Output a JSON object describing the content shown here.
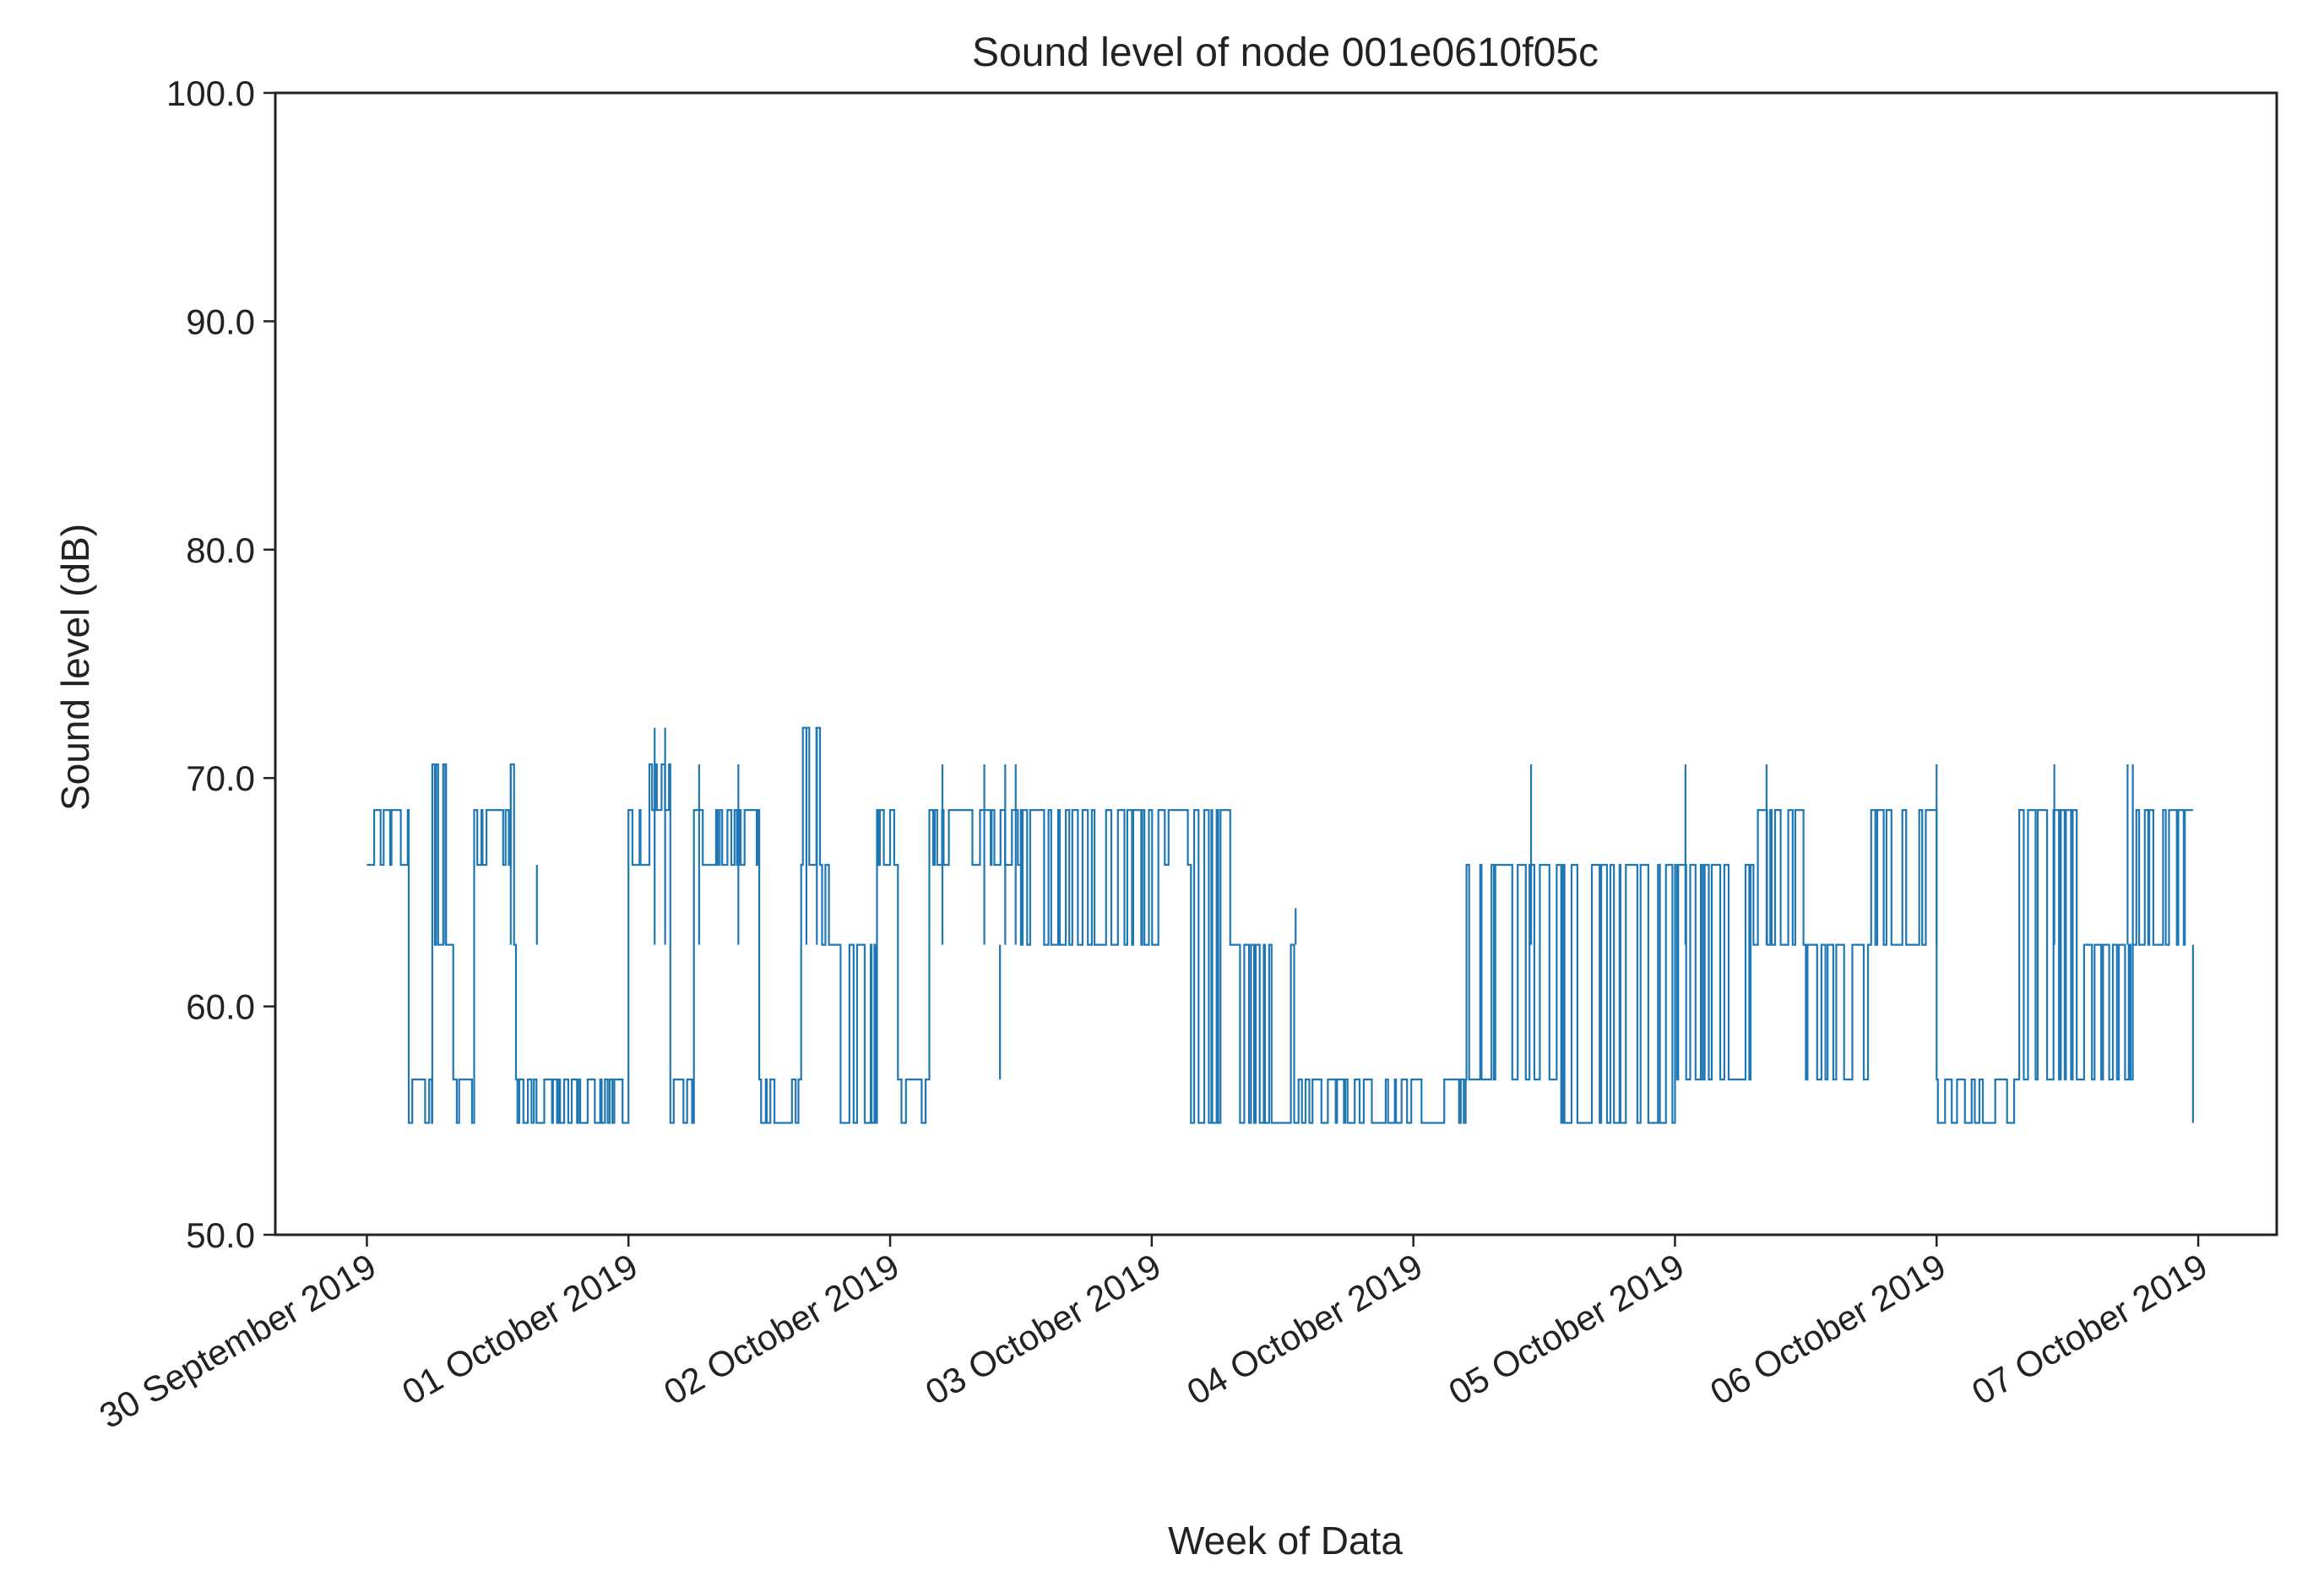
{
  "chart_data": {
    "type": "line",
    "title": "Sound level of node 001e0610f05c",
    "xlabel": "Week of Data",
    "ylabel": "Sound level (dB)",
    "ylim": [
      50,
      100
    ],
    "xlim": [
      -0.35,
      7.3
    ],
    "yticks": [
      50,
      60,
      70,
      80,
      90,
      100
    ],
    "ytick_labels": [
      "50.0",
      "60.0",
      "70.0",
      "80.0",
      "90.0",
      "100.0"
    ],
    "xticks": [
      0,
      1,
      2,
      3,
      4,
      5,
      6,
      7
    ],
    "xtick_labels": [
      "30 September 2019",
      "01 October 2019",
      "02 October 2019",
      "03 October 2019",
      "04 October 2019",
      "05 October 2019",
      "06 October 2019",
      "07 October 2019"
    ],
    "x_units": "days since 30 September 2019",
    "grid": false,
    "series": [
      {
        "name": "Sound level",
        "color": "#1f77b4",
        "segments": [
          {
            "x": [
              0.0,
              0.16
            ],
            "levels": [
              66.2,
              68.6
            ]
          },
          {
            "x": [
              0.16,
              0.25
            ],
            "levels": [
              54.9,
              56.8
            ]
          },
          {
            "x": [
              0.25,
              0.33
            ],
            "levels": [
              62.7,
              70.6
            ]
          },
          {
            "x": [
              0.33,
              0.41
            ],
            "levels": [
              54.9,
              56.8
            ]
          },
          {
            "x": [
              0.41,
              0.55
            ],
            "levels": [
              66.2,
              68.6
            ]
          },
          {
            "x": [
              0.55,
              0.57
            ],
            "levels": [
              62.7,
              70.6
            ]
          },
          {
            "x": [
              0.57,
              1.0
            ],
            "levels": [
              54.9,
              56.8
            ]
          },
          {
            "x": [
              1.0,
              1.08
            ],
            "levels": [
              66.2,
              68.6
            ]
          },
          {
            "x": [
              1.08,
              1.16
            ],
            "levels": [
              68.6,
              70.6
            ]
          },
          {
            "x": [
              1.16,
              1.25
            ],
            "levels": [
              54.9,
              56.8
            ]
          },
          {
            "x": [
              1.25,
              1.5
            ],
            "levels": [
              66.2,
              68.6
            ]
          },
          {
            "x": [
              1.5,
              1.66
            ],
            "levels": [
              54.9,
              56.8
            ]
          },
          {
            "x": [
              1.66,
              1.74
            ],
            "levels": [
              66.2,
              72.2
            ]
          },
          {
            "x": [
              1.74,
              1.8
            ],
            "levels": [
              62.7,
              66.2
            ]
          },
          {
            "x": [
              1.8,
              1.95
            ],
            "levels": [
              54.9,
              62.7
            ]
          },
          {
            "x": [
              1.95,
              2.03
            ],
            "levels": [
              66.2,
              68.6
            ]
          },
          {
            "x": [
              2.03,
              2.15
            ],
            "levels": [
              54.9,
              56.8
            ]
          },
          {
            "x": [
              2.15,
              2.5
            ],
            "levels": [
              66.2,
              68.6
            ]
          },
          {
            "x": [
              2.5,
              3.05
            ],
            "levels": [
              62.7,
              68.6
            ]
          },
          {
            "x": [
              3.05,
              3.15
            ],
            "levels": [
              66.2,
              68.6
            ]
          },
          {
            "x": [
              3.15,
              3.3
            ],
            "levels": [
              54.9,
              68.6
            ]
          },
          {
            "x": [
              3.3,
              3.55
            ],
            "levels": [
              54.9,
              62.7
            ]
          },
          {
            "x": [
              3.55,
              4.2
            ],
            "levels": [
              54.9,
              56.8
            ]
          },
          {
            "x": [
              4.2,
              4.55
            ],
            "levels": [
              56.8,
              66.2
            ]
          },
          {
            "x": [
              4.55,
              5.0
            ],
            "levels": [
              54.9,
              66.2
            ]
          },
          {
            "x": [
              5.0,
              5.3
            ],
            "levels": [
              56.8,
              66.2
            ]
          },
          {
            "x": [
              5.3,
              5.5
            ],
            "levels": [
              62.7,
              68.6
            ]
          },
          {
            "x": [
              5.5,
              5.75
            ],
            "levels": [
              56.8,
              62.7
            ]
          },
          {
            "x": [
              5.75,
              6.0
            ],
            "levels": [
              62.7,
              68.6
            ]
          },
          {
            "x": [
              6.0,
              6.3
            ],
            "levels": [
              54.9,
              56.8
            ]
          },
          {
            "x": [
              6.3,
              6.55
            ],
            "levels": [
              56.8,
              68.6
            ]
          },
          {
            "x": [
              6.55,
              6.75
            ],
            "levels": [
              56.8,
              62.7
            ]
          },
          {
            "x": [
              6.75,
              6.98
            ],
            "levels": [
              62.7,
              68.6
            ]
          }
        ],
        "spikes": [
          {
            "x": 0.26,
            "value": 70.6
          },
          {
            "x": 0.3,
            "value": 70.6
          },
          {
            "x": 0.55,
            "value": 70.6
          },
          {
            "x": 0.65,
            "value": 66.2
          },
          {
            "x": 1.1,
            "value": 72.2
          },
          {
            "x": 1.14,
            "value": 72.2
          },
          {
            "x": 1.27,
            "value": 70.6
          },
          {
            "x": 1.42,
            "value": 70.6
          },
          {
            "x": 1.68,
            "value": 72.2
          },
          {
            "x": 1.72,
            "value": 72.2
          },
          {
            "x": 2.2,
            "value": 70.6
          },
          {
            "x": 2.36,
            "value": 70.6
          },
          {
            "x": 2.44,
            "value": 70.6
          },
          {
            "x": 2.48,
            "value": 70.6
          },
          {
            "x": 2.42,
            "value": 56.8
          },
          {
            "x": 3.55,
            "value": 64.3
          },
          {
            "x": 4.45,
            "value": 70.6
          },
          {
            "x": 5.04,
            "value": 70.6
          },
          {
            "x": 5.35,
            "value": 70.6
          },
          {
            "x": 6.0,
            "value": 70.6
          },
          {
            "x": 6.45,
            "value": 70.6
          },
          {
            "x": 6.73,
            "value": 70.6
          },
          {
            "x": 6.75,
            "value": 70.6
          },
          {
            "x": 6.98,
            "value": 54.9
          }
        ]
      }
    ]
  }
}
